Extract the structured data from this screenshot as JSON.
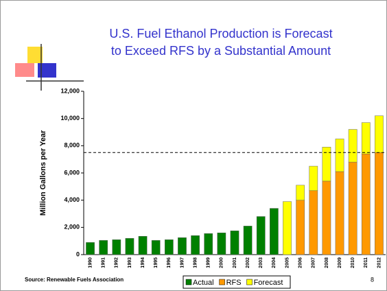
{
  "chart_data": {
    "type": "bar",
    "stacked": true,
    "title_lines": [
      "U.S. Fuel Ethanol Production is Forecast",
      "to Exceed RFS by a Substantial Amount"
    ],
    "y_label": "Million Gallons per Year",
    "source": "Source: Renewable Fuels Association",
    "page_number": "8",
    "categories": [
      "1990",
      "1991",
      "1992",
      "1993",
      "1994",
      "1995",
      "1996",
      "1997",
      "1998",
      "1999",
      "2000",
      "2001",
      "2002",
      "2003",
      "2004",
      "2005",
      "2006",
      "2007",
      "2008",
      "2009",
      "2010",
      "2011",
      "2012"
    ],
    "series": [
      {
        "name": "Actual",
        "color": "#008000",
        "values": [
          900,
          1050,
          1100,
          1200,
          1350,
          1050,
          1100,
          1250,
          1400,
          1550,
          1600,
          1750,
          2100,
          2800,
          3400,
          null,
          null,
          null,
          null,
          null,
          null,
          null,
          null
        ]
      },
      {
        "name": "RFS",
        "color": "#ff9900",
        "values": [
          null,
          null,
          null,
          null,
          null,
          null,
          null,
          null,
          null,
          null,
          null,
          null,
          null,
          null,
          null,
          null,
          4000,
          4700,
          5400,
          6100,
          6800,
          7400,
          7500
        ]
      },
      {
        "name": "Forecast",
        "color": "#ffff00",
        "values": [
          null,
          null,
          null,
          null,
          null,
          null,
          null,
          null,
          null,
          null,
          null,
          null,
          null,
          null,
          null,
          3900,
          1100,
          1800,
          2500,
          2400,
          2400,
          2300,
          2700
        ]
      }
    ],
    "reference_line": 7500,
    "ylim": [
      0,
      12000
    ],
    "yticks": [
      0,
      {
        "value": 2000,
        "label": "2,000"
      },
      {
        "value": 4000,
        "label": "4,000"
      },
      {
        "value": 6000,
        "label": "6,000"
      },
      {
        "value": 8000,
        "label": "8,000"
      },
      {
        "value": 10000,
        "label": "10,000"
      },
      {
        "value": 12000,
        "label": "12,000"
      }
    ],
    "legend": "bottom"
  }
}
